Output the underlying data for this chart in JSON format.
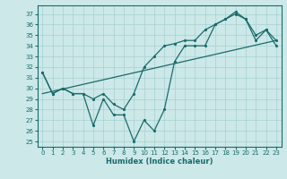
{
  "xlabel": "Humidex (Indice chaleur)",
  "xlim": [
    -0.5,
    23.5
  ],
  "ylim": [
    24.5,
    37.8
  ],
  "yticks": [
    25,
    26,
    27,
    28,
    29,
    30,
    31,
    32,
    33,
    34,
    35,
    36,
    37
  ],
  "xticks": [
    0,
    1,
    2,
    3,
    4,
    5,
    6,
    7,
    8,
    9,
    10,
    11,
    12,
    13,
    14,
    15,
    16,
    17,
    18,
    19,
    20,
    21,
    22,
    23
  ],
  "background_color": "#cce8e8",
  "line_color": "#1a6b6b",
  "line_upper": [
    31.5,
    29.5,
    30.0,
    29.5,
    29.5,
    29.0,
    29.5,
    28.5,
    28.0,
    29.5,
    32.0,
    33.0,
    34.0,
    34.2,
    34.5,
    34.5,
    35.5,
    36.0,
    36.5,
    37.0,
    36.5,
    35.0,
    35.5,
    34.5
  ],
  "line_lower": [
    31.5,
    29.5,
    30.0,
    29.5,
    29.5,
    26.5,
    29.0,
    27.5,
    27.5,
    25.0,
    27.0,
    26.0,
    28.0,
    32.5,
    34.0,
    34.0,
    34.0,
    36.0,
    36.5,
    37.2,
    36.5,
    34.5,
    35.5,
    34.0
  ],
  "trend_x": [
    0,
    23
  ],
  "trend_y": [
    29.5,
    34.5
  ]
}
